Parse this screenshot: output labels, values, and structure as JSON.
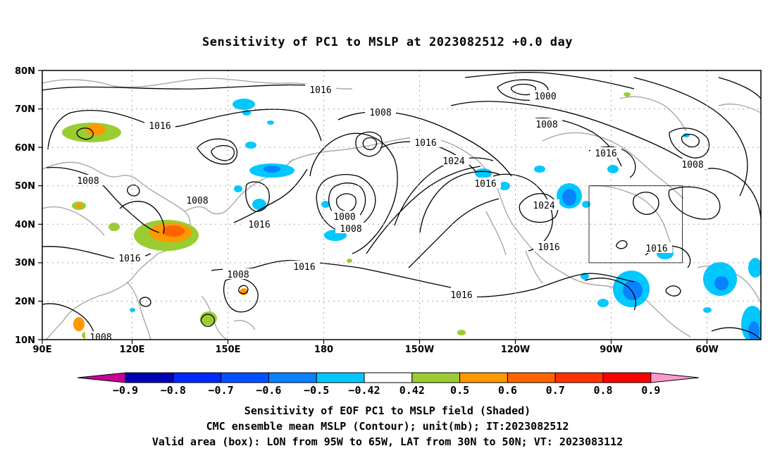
{
  "title": "Sensitivity of PC1 to MSLP at 2023082512 +0.0 day",
  "map": {
    "lat_labels": [
      "80N",
      "70N",
      "60N",
      "50N",
      "40N",
      "30N",
      "20N",
      "10N"
    ],
    "lon_labels": [
      "90E",
      "120E",
      "150E",
      "180",
      "150W",
      "120W",
      "90W",
      "60W"
    ],
    "valid_box": {
      "lon_west": "95W",
      "lon_east": "65W",
      "lat_south": "30N",
      "lat_north": "50N"
    },
    "contour_labels": [
      "1016",
      "1016",
      "1008",
      "1016",
      "1008",
      "1016",
      "1024",
      "1000",
      "1008",
      "1016",
      "1008",
      "1016",
      "1000",
      "1008",
      "1016",
      "1016",
      "1008",
      "1024",
      "1016",
      "1016",
      "1008",
      "1016",
      "1008",
      "1016",
      "1008"
    ],
    "shading_colors": {
      "negative": "#1e90ff",
      "positive_low": "#9acd32",
      "positive_high": "#ff7f00"
    }
  },
  "colorbar": {
    "labels": [
      "−0.9",
      "−0.8",
      "−0.7",
      "−0.6",
      "−0.5",
      "−0.42",
      "0.42",
      "0.5",
      "0.6",
      "0.7",
      "0.8",
      "0.9"
    ],
    "colors": [
      "#c80096",
      "#0000b4",
      "#0028ff",
      "#0050ff",
      "#0a82ff",
      "#00c8ff",
      "#ffffff",
      "#9acd32",
      "#ff9900",
      "#ff6400",
      "#ff3200",
      "#ff0000",
      "#ff99cc"
    ]
  },
  "captions": [
    "Sensitivity of EOF PC1 to MSLP field (Shaded)",
    "CMC ensemble mean MSLP (Contour); unit(mb); IT:2023082512",
    "Valid area (box): LON from 95W to 65W, LAT from 30N to 50N; VT: 2023083112"
  ]
}
